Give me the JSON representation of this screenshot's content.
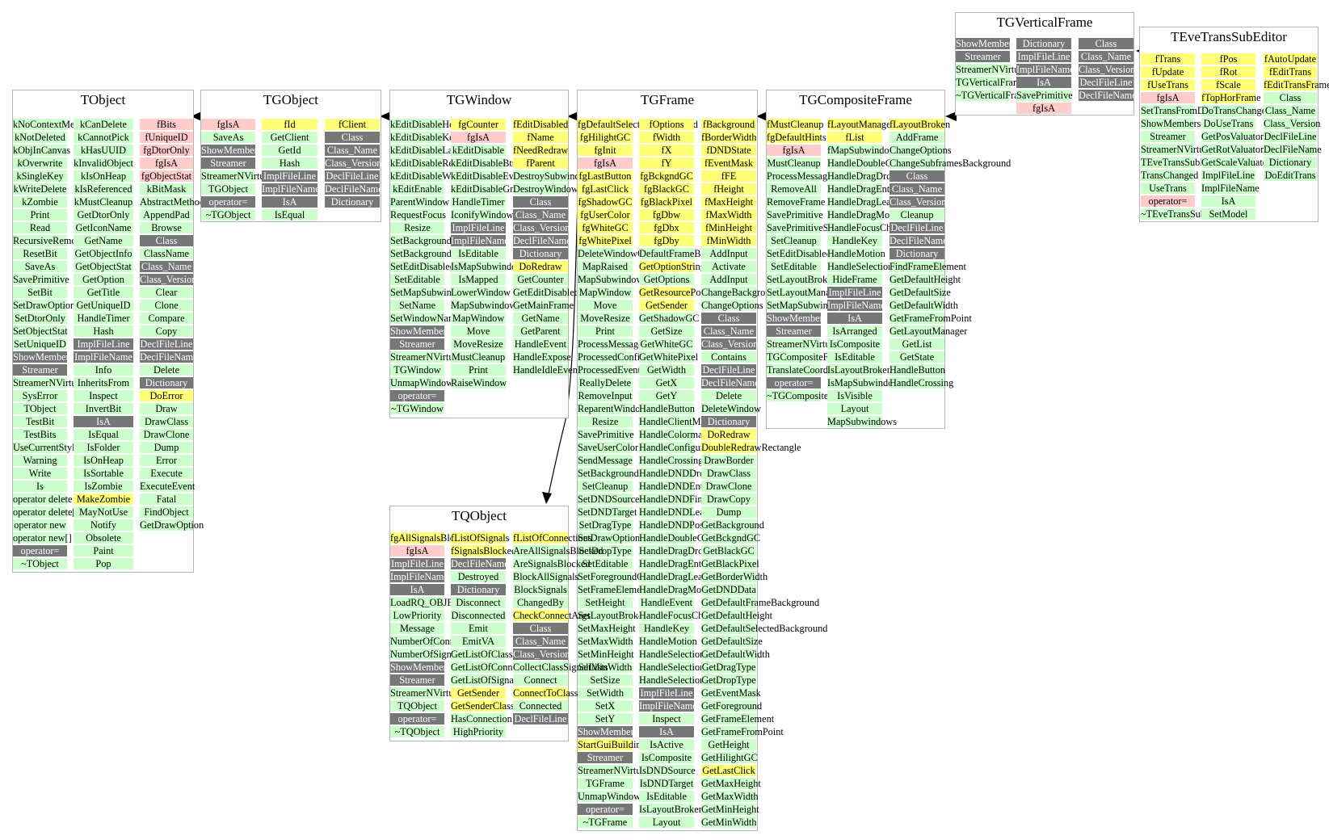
{
  "colors": {
    "public_method": "#ccffcc",
    "member": "#ffff77",
    "private": "#ffcccc",
    "static": "#777777",
    "border": "#b5b5b5",
    "edge": "#000000"
  },
  "classes": [
    {
      "name": "TObject",
      "columns": [
        [
          "g:kNoContextMenu",
          "g:kNotDeleted",
          "g:kObjInCanvas",
          "g:kOverwrite",
          "g:kSingleKey",
          "g:kWriteDelete",
          "g:kZombie",
          "g:Print",
          "g:Read",
          "g:RecursiveRemove",
          "g:ResetBit",
          "g:SaveAs",
          "g:SavePrimitive",
          "g:SetBit",
          "g:SetDrawOption",
          "g:SetDtorOnly",
          "g:SetObjectStat",
          "g:SetUniqueID",
          "d:ShowMembers",
          "d:Streamer",
          "g:StreamerNVirtual",
          "g:SysError",
          "g:TObject",
          "g:TestBit",
          "g:TestBits",
          "g:UseCurrentStyle",
          "g:Warning",
          "g:Write",
          "g:Is",
          "g:operator delete",
          "g:operator delete[]",
          "g:operator new",
          "g:operator new[]",
          "d:operator=",
          "g:~TObject"
        ],
        [
          "g:kCanDelete",
          "g:kCannotPick",
          "g:kHasUUID",
          "g:kInvalidObject",
          "g:kIsOnHeap",
          "g:kIsReferenced",
          "g:kMustCleanup",
          "g:GetDtorOnly",
          "g:GetIconName",
          "g:GetName",
          "g:GetObjectInfo",
          "g:GetObjectStat",
          "g:GetOption",
          "g:GetTitle",
          "g:GetUniqueID",
          "g:HandleTimer",
          "g:Hash",
          "d:ImplFileLine",
          "d:ImplFileName",
          "g:Info",
          "g:InheritsFrom",
          "g:Inspect",
          "g:InvertBit",
          "d:IsA",
          "g:IsEqual",
          "g:IsFolder",
          "g:IsOnHeap",
          "g:IsSortable",
          "g:IsZombie",
          "y:MakeZombie",
          "g:MayNotUse",
          "g:Notify",
          "g:Obsolete",
          "g:Paint",
          "g:Pop"
        ],
        [
          "r:fBits",
          "r:fUniqueID",
          "r:fgDtorOnly",
          "r:fgIsA",
          "r:fgObjectStat",
          "g:kBitMask",
          "g:AbstractMethod",
          "g:AppendPad",
          "g:Browse",
          "d:Class",
          "g:ClassName",
          "d:Class_Name",
          "d:Class_Version",
          "g:Clear",
          "g:Clone",
          "g:Compare",
          "g:Copy",
          "d:DeclFileLine",
          "d:DeclFileName",
          "g:Delete",
          "d:Dictionary",
          "y:DoError",
          "g:Draw",
          "g:DrawClass",
          "g:DrawClone",
          "g:Dump",
          "g:Error",
          "g:Execute",
          "g:ExecuteEvent",
          "g:Fatal",
          "g:FindObject",
          "g:GetDrawOption"
        ]
      ]
    },
    {
      "name": "TGObject",
      "columns": [
        [
          "r:fgIsA",
          "g:SaveAs",
          "d:ShowMembers",
          "d:Streamer",
          "g:StreamerNVirtual",
          "g:TGObject",
          "d:operator=",
          "g:~TGObject"
        ],
        [
          "y:fId",
          "g:GetClient",
          "g:GetId",
          "g:Hash",
          "d:ImplFileLine",
          "d:ImplFileName",
          "d:IsA",
          "g:IsEqual"
        ],
        [
          "y:fClient",
          "d:Class",
          "d:Class_Name",
          "d:Class_Version",
          "d:DeclFileLine",
          "d:DeclFileName",
          "d:Dictionary"
        ]
      ]
    },
    {
      "name": "TGWindow",
      "columns": [
        [
          "g:kEditDisableHeight",
          "g:kEditDisableKeyEnable",
          "g:kEditDisableLayout",
          "g:kEditDisableResize",
          "g:kEditDisableWidth",
          "g:kEditEnable",
          "g:ParentWindow",
          "g:RequestFocus",
          "g:Resize",
          "g:SetBackgroundColor",
          "g:SetBackgroundPixmap",
          "g:SetEditDisabled",
          "g:SetEditable",
          "g:SetMapSubwindows",
          "g:SetName",
          "g:SetWindowName",
          "d:ShowMembers",
          "d:Streamer",
          "g:StreamerNVirtual",
          "g:TGWindow",
          "g:UnmapWindow",
          "d:operator=",
          "g:~TGWindow"
        ],
        [
          "y:fgCounter",
          "r:fgIsA",
          "g:kEditDisable",
          "g:kEditDisableBtnEnable",
          "g:kEditDisableEvents",
          "g:kEditDisableGrab",
          "g:HandleTimer",
          "g:IconifyWindow",
          "d:ImplFileLine",
          "d:ImplFileName",
          "g:IsEditable",
          "g:IsMapSubwindows",
          "g:IsMapped",
          "g:LowerWindow",
          "g:MapSubwindows",
          "g:MapWindow",
          "g:Move",
          "g:MoveResize",
          "g:MustCleanup",
          "g:Print",
          "g:RaiseWindow"
        ],
        [
          "y:fEditDisabled",
          "y:fName",
          "y:fNeedRedraw",
          "y:fParent",
          "g:DestroySubwindows",
          "g:DestroyWindow",
          "d:Class",
          "d:Class_Name",
          "d:Class_Version",
          "d:DeclFileName",
          "d:Dictionary",
          "y:DoRedraw",
          "g:GetCounter",
          "g:GetEditDisabled",
          "g:GetMainFrame",
          "g:GetName",
          "g:GetParent",
          "g:HandleEvent",
          "g:HandleExpose",
          "g:HandleIdleEvent"
        ]
      ]
    },
    {
      "name": "TGFrame",
      "columns": [
        [
          "y:fgDefaultSelectedBackground",
          "y:fgHilightGC",
          "y:fgInit",
          "r:fgIsA",
          "y:fgLastButton",
          "y:fgLastClick",
          "y:fgShadowGC",
          "y:fgUserColor",
          "y:fgWhiteGC",
          "y:fgWhitePixel",
          "g:DeleteWindowCalled",
          "g:MapRaised",
          "g:MapSubwindows",
          "g:MapWindow",
          "g:Move",
          "g:MoveResize",
          "g:Print",
          "g:ProcessMessage",
          "g:ProcessedConfigure",
          "g:ProcessedEvent",
          "g:ReallyDelete",
          "g:RemoveInput",
          "g:ReparentWindow",
          "g:Resize",
          "g:SavePrimitive",
          "g:SaveUserColor",
          "g:SendMessage",
          "g:SetBackgroundColor",
          "g:SetCleanup",
          "g:SetDNDSource",
          "g:SetDNDTarget",
          "g:SetDragType",
          "g:SetDrawOption",
          "g:SetDropType",
          "g:SetEditable",
          "g:SetForegroundColor",
          "g:SetFrameElement",
          "g:SetHeight",
          "g:SetLayoutBroken",
          "g:SetMaxHeight",
          "g:SetMaxWidth",
          "g:SetMinHeight",
          "g:SetMinWidth",
          "g:SetSize",
          "g:SetWidth",
          "g:SetX",
          "g:SetY",
          "d:ShowMembers",
          "y:StartGuiBuilding",
          "d:Streamer",
          "g:StreamerNVirtual",
          "g:TGFrame",
          "g:UnmapWindow",
          "d:operator=",
          "g:~TGFrame"
        ],
        [
          "y:fOptions",
          "y:fWidth",
          "y:fX",
          "y:fY",
          "y:fgBckgndGC",
          "y:fgBlackGC",
          "y:fgBlackPixel",
          "y:fgDbw",
          "y:fgDbx",
          "y:fgDby",
          "g:DefaultFrameBackground",
          "y:GetOptionString",
          "g:GetOptions",
          "y:GetResourcePool",
          "y:GetSender",
          "g:GetShadowGC",
          "g:GetSize",
          "g:GetWhiteGC",
          "g:GetWhitePixel",
          "g:GetWidth",
          "g:GetX",
          "g:GetY",
          "g:HandleButton",
          "g:HandleClientMessage",
          "g:HandleColormapChange",
          "g:HandleConfigureNotify",
          "g:HandleCrossing",
          "g:HandleDNDDrop",
          "g:HandleDNDEnter",
          "g:HandleDNDFinished",
          "g:HandleDNDLeave",
          "g:HandleDNDPosition",
          "g:HandleDoubleClick",
          "g:HandleDragDrop",
          "g:HandleDragEnter",
          "g:HandleDragLeave",
          "g:HandleDragMotion",
          "g:HandleEvent",
          "g:HandleFocusChange",
          "g:HandleKey",
          "g:HandleMotion",
          "g:HandleSelection",
          "g:HandleSelectionClear",
          "g:HandleSelectionRequest",
          "d:ImplFileLine",
          "d:ImplFileName",
          "g:Inspect",
          "d:IsA",
          "g:IsActive",
          "g:IsComposite",
          "g:IsDNDSource",
          "g:IsDNDTarget",
          "g:IsEditable",
          "g:IsLayoutBroken",
          "g:Layout"
        ],
        [
          "y:fBackground",
          "y:fBorderWidth",
          "y:fDNDState",
          "y:fEventMask",
          "y:fFE",
          "y:fHeight",
          "y:fMaxHeight",
          "y:fMaxWidth",
          "y:fMinHeight",
          "y:fMinWidth",
          "g:AddInput",
          "g:Activate",
          "g:AddInput",
          "g:ChangeBackground",
          "g:ChangeOptions",
          "d:Class",
          "d:Class_Name",
          "d:Class_Version",
          "g:Contains",
          "d:DeclFileLine",
          "d:DeclFileName",
          "g:Delete",
          "g:DeleteWindow",
          "d:Dictionary",
          "y:DoRedraw",
          "y:DoubleRedrawRectangle",
          "g:DrawBorder",
          "g:DrawClass",
          "g:DrawClone",
          "g:DrawCopy",
          "g:Dump",
          "g:GetBackground",
          "g:GetBckgndGC",
          "g:GetBlackGC",
          "g:GetBlackPixel",
          "g:GetBorderWidth",
          "g:GetDNDData",
          "g:GetDefaultFrameBackground",
          "g:GetDefaultHeight",
          "g:GetDefaultSelectedBackground",
          "g:GetDefaultSize",
          "g:GetDefaultWidth",
          "g:GetDragType",
          "g:GetDropType",
          "g:GetEventMask",
          "g:GetForeground",
          "g:GetFrameElement",
          "g:GetFrameFromPoint",
          "g:GetHeight",
          "g:GetHilightGC",
          "y:GetLastClick",
          "g:GetMaxHeight",
          "g:GetMaxWidth",
          "g:GetMinHeight",
          "g:GetMinWidth"
        ]
      ]
    },
    {
      "name": "TGCompositeFrame",
      "columns": [
        [
          "y:fMustCleanup",
          "y:fgDefaultHints",
          "r:fgIsA",
          "g:MustCleanup",
          "g:ProcessMessage",
          "g:RemoveAll",
          "g:RemoveFrame",
          "g:SavePrimitive",
          "g:SavePrimitiveSubframes",
          "g:SetCleanup",
          "g:SetEditDisabled",
          "g:SetEditable",
          "g:SetLayoutBroken",
          "g:SetLayoutManager",
          "g:SetMapSubwindows",
          "d:ShowMembers",
          "d:Streamer",
          "g:StreamerNVirtual",
          "g:TGCompositeFrame",
          "g:TranslateCoordinates",
          "d:operator=",
          "g:~TGCompositeFrame"
        ],
        [
          "y:fLayoutManager",
          "y:fList",
          "g:fMapSubwindows",
          "g:HandleDoubleClick",
          "g:HandleDragDrop",
          "g:HandleDragEnter",
          "g:HandleDragLeave",
          "g:HandleDragMotion",
          "g:HandleFocusChange",
          "g:HandleKey",
          "g:HandleMotion",
          "g:HandleSelection",
          "g:HideFrame",
          "d:ImplFileLine",
          "d:ImplFileName",
          "d:IsA",
          "g:IsArranged",
          "g:IsComposite",
          "g:IsEditable",
          "g:IsLayoutBroken",
          "g:IsMapSubwindows",
          "g:IsVisible",
          "g:Layout",
          "g:MapSubwindows"
        ],
        [
          "y:fLayoutBroken",
          "g:AddFrame",
          "g:ChangeOptions",
          "g:ChangeSubframesBackground",
          "d:Class",
          "d:Class_Name",
          "d:Class_Version",
          "g:Cleanup",
          "d:DeclFileLine",
          "d:DeclFileName",
          "d:Dictionary",
          "g:FindFrameElement",
          "g:GetDefaultHeight",
          "g:GetDefaultSize",
          "g:GetDefaultWidth",
          "g:GetFrameFromPoint",
          "g:GetLayoutManager",
          "g:GetList",
          "g:GetState",
          "g:HandleButton",
          "g:HandleCrossing"
        ]
      ]
    },
    {
      "name": "TQObject",
      "columns": [
        [
          "y:fgAllSignalsBlocked",
          "r:fgIsA",
          "d:ImplFileLine",
          "d:ImplFileName",
          "d:IsA",
          "g:LoadRQ_OBJECT",
          "g:LowPriority",
          "g:Message",
          "g:NumberOfConnections",
          "g:NumberOfSignals",
          "d:ShowMembers",
          "d:Streamer",
          "g:StreamerNVirtual",
          "g:TQObject",
          "d:operator=",
          "g:~TQObject"
        ],
        [
          "y:fListOfSignals",
          "y:fSignalsBlocked",
          "d:DeclFileName",
          "g:Destroyed",
          "d:Dictionary",
          "g:Disconnect",
          "g:Disconnected",
          "g:Emit",
          "g:EmitVA",
          "g:GetListOfClassSignals",
          "g:GetListOfConnections",
          "g:GetListOfSignals",
          "y:GetSender",
          "y:GetSenderClassName",
          "g:HasConnection",
          "g:HighPriority"
        ],
        [
          "y:fListOfConnections",
          "g:AreAllSignalsBlocked",
          "g:AreSignalsBlocked",
          "g:BlockAllSignals",
          "g:BlockSignals",
          "g:ChangedBy",
          "y:CheckConnectArgs",
          "d:Class",
          "d:Class_Name",
          "d:Class_Version",
          "g:CollectClassSignalLists",
          "g:Connect",
          "y:ConnectToClass",
          "g:Connected",
          "d:DeclFileLine"
        ]
      ]
    },
    {
      "name": "TGVerticalFrame",
      "columns": [
        [
          "d:ShowMembers",
          "d:Streamer",
          "g:StreamerNVirtual",
          "g:TGVerticalFrame",
          "g:~TGVerticalFrame"
        ],
        [
          "d:Dictionary",
          "d:ImplFileLine",
          "d:ImplFileName",
          "d:IsA",
          "g:SavePrimitive",
          "r:fgIsA"
        ],
        [
          "d:Class",
          "d:Class_Name",
          "d:Class_Version",
          "d:DeclFileLine",
          "d:DeclFileName"
        ]
      ]
    },
    {
      "name": "TEveTransSubEditor",
      "columns": [
        [
          "y:fTrans",
          "y:fUpdate",
          "y:fUseTrans",
          "r:fgIsA",
          "g:SetTransFromData",
          "g:ShowMembers",
          "g:Streamer",
          "g:StreamerNVirtual",
          "g:TEveTransSubEditor",
          "g:TransChanged",
          "g:UseTrans",
          "r:operator=",
          "g:~TEveTransSubEditor"
        ],
        [
          "y:fPos",
          "y:fRot",
          "y:fScale",
          "y:fTopHorFrame",
          "g:DoTransChanged",
          "g:DoUseTrans",
          "g:GetPosValuator",
          "g:GetRotValuator",
          "g:GetScaleValuator",
          "g:ImplFileLine",
          "g:ImplFileName",
          "g:IsA",
          "g:SetModel"
        ],
        [
          "y:fAutoUpdate",
          "y:fEditTrans",
          "y:fEditTransFrame",
          "g:Class",
          "g:Class_Name",
          "g:Class_Version",
          "g:DeclFileLine",
          "g:DeclFileName",
          "g:Dictionary",
          "g:DoEditTrans"
        ]
      ]
    }
  ],
  "edges": [
    {
      "from": "TGObject",
      "to": "TObject"
    },
    {
      "from": "TGWindow",
      "to": "TGObject"
    },
    {
      "from": "TGFrame",
      "to": "TGWindow"
    },
    {
      "from": "TGFrame",
      "to": "TQObject"
    },
    {
      "from": "TGCompositeFrame",
      "to": "TGFrame"
    },
    {
      "from": "TGVerticalFrame",
      "to": "TGCompositeFrame"
    },
    {
      "from": "TEveTransSubEditor",
      "to": "TGVerticalFrame"
    }
  ]
}
